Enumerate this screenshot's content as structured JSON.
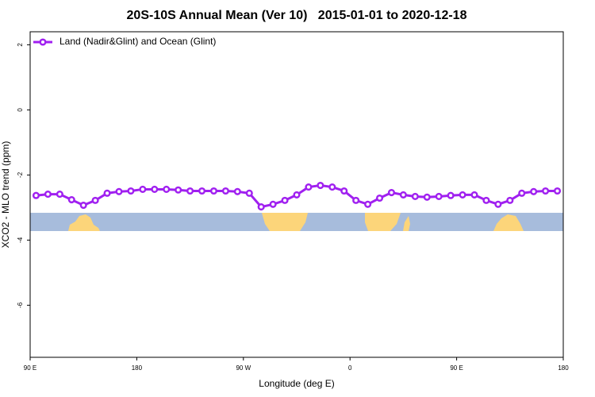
{
  "chart_data": {
    "type": "line",
    "title": "20S-10S Annual Mean (Ver 10)   2015-01-01 to 2020-12-18",
    "x_label": "Longitude (deg E)",
    "y_label": "XCO2 - MLO trend (ppm)",
    "xlim": [
      90,
      540
    ],
    "ylim": [
      -7.6,
      2.4
    ],
    "xticks": [
      {
        "value": 90,
        "label": "90 E"
      },
      {
        "value": 180,
        "label": "180"
      },
      {
        "value": 270,
        "label": "90 W"
      },
      {
        "value": 360,
        "label": "0"
      },
      {
        "value": 450,
        "label": "90 E"
      },
      {
        "value": 540,
        "label": "180"
      }
    ],
    "yticks": [
      2,
      0,
      -2,
      -4,
      -6
    ],
    "legend_position": "top-left",
    "x": [
      95,
      105,
      115,
      125,
      135,
      145,
      155,
      165,
      175,
      185,
      195,
      205,
      215,
      225,
      235,
      245,
      255,
      265,
      275,
      285,
      295,
      305,
      315,
      325,
      335,
      345,
      355,
      365,
      375,
      385,
      395,
      405,
      415,
      425,
      435,
      445,
      455,
      465,
      475,
      485,
      495,
      505,
      515,
      525,
      535
    ],
    "series": [
      {
        "name": "Land (Nadir&Glint) and Ocean (Glint)",
        "color": "#a020f0",
        "values": [
          -2.63,
          -2.59,
          -2.59,
          -2.76,
          -2.93,
          -2.78,
          -2.56,
          -2.51,
          -2.49,
          -2.44,
          -2.44,
          -2.44,
          -2.46,
          -2.49,
          -2.49,
          -2.49,
          -2.49,
          -2.51,
          -2.56,
          -2.98,
          -2.9,
          -2.78,
          -2.61,
          -2.37,
          -2.32,
          -2.37,
          -2.49,
          -2.78,
          -2.9,
          -2.71,
          -2.54,
          -2.61,
          -2.66,
          -2.68,
          -2.66,
          -2.63,
          -2.61,
          -2.61,
          -2.78,
          -2.9,
          -2.78,
          -2.56,
          -2.51,
          -2.49,
          -2.49
        ]
      }
    ]
  }
}
